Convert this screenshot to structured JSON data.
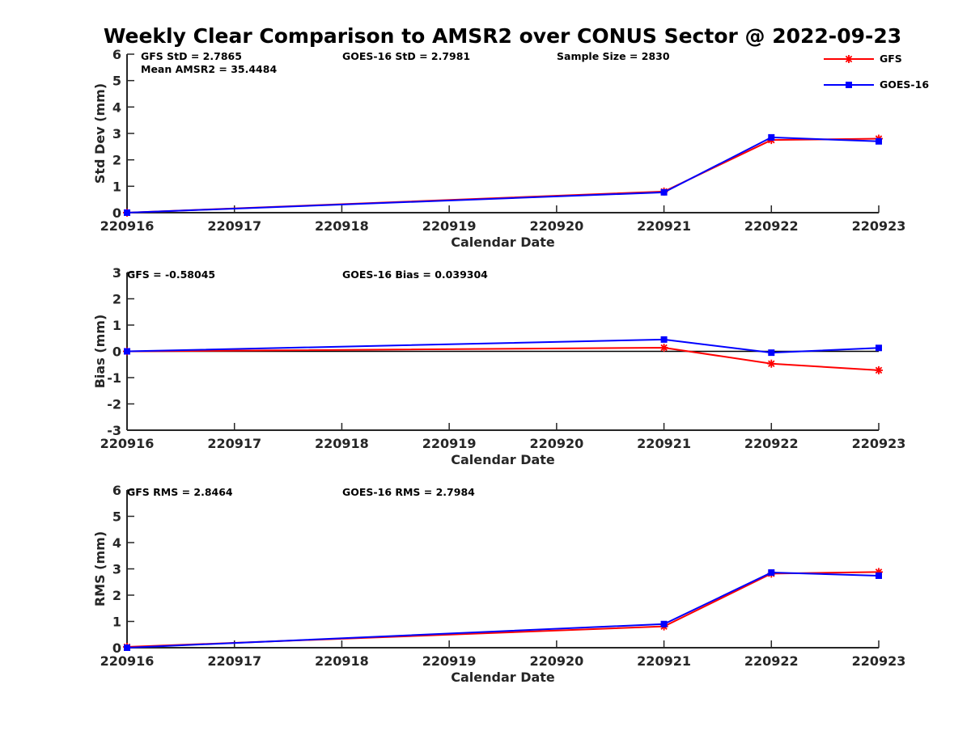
{
  "title": "Weekly Clear Comparison to AMSR2 over CONUS Sector @ 2022-09-23",
  "legend": [
    {
      "label": "GFS",
      "color": "#ff0000",
      "marker": "asterisk"
    },
    {
      "label": "GOES-16",
      "color": "#0000ff",
      "marker": "square"
    }
  ],
  "chart_data": [
    {
      "type": "line",
      "x": [
        "220916",
        "220917",
        "220918",
        "220919",
        "220920",
        "220921",
        "220922",
        "220923"
      ],
      "xlabel": "Calendar Date",
      "ylabel": "Std Dev (mm)",
      "ylim": [
        0,
        6
      ],
      "yticks": [
        0,
        1,
        2,
        3,
        4,
        5,
        6
      ],
      "series": [
        {
          "name": "GFS",
          "color": "#ff0000",
          "marker": "asterisk",
          "x": [
            "220916",
            "220921",
            "220922",
            "220923"
          ],
          "values": [
            0.0,
            0.8,
            2.75,
            2.8
          ]
        },
        {
          "name": "GOES-16",
          "color": "#0000ff",
          "marker": "square",
          "x": [
            "220916",
            "220921",
            "220922",
            "220923"
          ],
          "values": [
            0.0,
            0.77,
            2.85,
            2.7
          ]
        }
      ],
      "annotations": [
        "GFS StD = 2.7865",
        "Mean AMSR2 = 35.4484",
        "GOES-16 StD = 2.7981",
        "Sample Size = 2830"
      ],
      "zero_line": false
    },
    {
      "type": "line",
      "x": [
        "220916",
        "220917",
        "220918",
        "220919",
        "220920",
        "220921",
        "220922",
        "220923"
      ],
      "xlabel": "Calendar Date",
      "ylabel": "Bias (mm)",
      "ylim": [
        -3,
        3
      ],
      "yticks": [
        -3,
        -2,
        -1,
        0,
        1,
        2,
        3
      ],
      "series": [
        {
          "name": "GFS",
          "color": "#ff0000",
          "marker": "asterisk",
          "x": [
            "220916",
            "220921",
            "220922",
            "220923"
          ],
          "values": [
            0.0,
            0.14,
            -0.47,
            -0.72
          ]
        },
        {
          "name": "GOES-16",
          "color": "#0000ff",
          "marker": "square",
          "x": [
            "220916",
            "220921",
            "220922",
            "220923"
          ],
          "values": [
            0.0,
            0.45,
            -0.05,
            0.13
          ]
        }
      ],
      "annotations": [
        "GFS = -0.58045",
        "GOES-16 Bias  = 0.039304"
      ],
      "zero_line": true
    },
    {
      "type": "line",
      "x": [
        "220916",
        "220917",
        "220918",
        "220919",
        "220920",
        "220921",
        "220922",
        "220923"
      ],
      "xlabel": "Calendar Date",
      "ylabel": "RMS (mm)",
      "ylim": [
        0,
        6
      ],
      "yticks": [
        0,
        1,
        2,
        3,
        4,
        5,
        6
      ],
      "series": [
        {
          "name": "GFS",
          "color": "#ff0000",
          "marker": "asterisk",
          "x": [
            "220916",
            "220921",
            "220922",
            "220923"
          ],
          "values": [
            0.03,
            0.81,
            2.82,
            2.88
          ]
        },
        {
          "name": "GOES-16",
          "color": "#0000ff",
          "marker": "square",
          "x": [
            "220916",
            "220921",
            "220922",
            "220923"
          ],
          "values": [
            0.0,
            0.9,
            2.86,
            2.74
          ]
        }
      ],
      "annotations": [
        "GFS RMS = 2.8464",
        "GOES-16 RMS = 2.7984"
      ],
      "zero_line": false
    }
  ]
}
